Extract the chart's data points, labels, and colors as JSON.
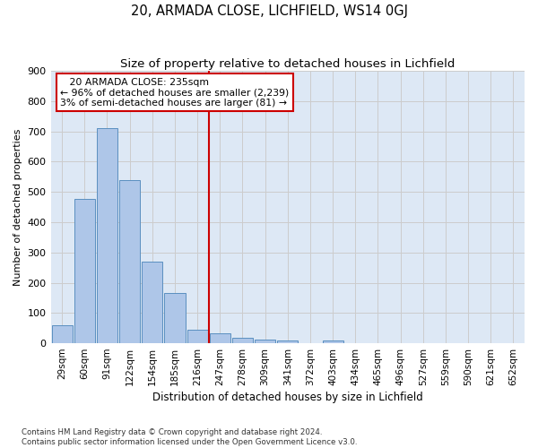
{
  "title": "20, ARMADA CLOSE, LICHFIELD, WS14 0GJ",
  "subtitle": "Size of property relative to detached houses in Lichfield",
  "xlabel": "Distribution of detached houses by size in Lichfield",
  "ylabel": "Number of detached properties",
  "footer_line1": "Contains HM Land Registry data © Crown copyright and database right 2024.",
  "footer_line2": "Contains public sector information licensed under the Open Government Licence v3.0.",
  "categories": [
    "29sqm",
    "60sqm",
    "91sqm",
    "122sqm",
    "154sqm",
    "185sqm",
    "216sqm",
    "247sqm",
    "278sqm",
    "309sqm",
    "341sqm",
    "372sqm",
    "403sqm",
    "434sqm",
    "465sqm",
    "496sqm",
    "527sqm",
    "559sqm",
    "590sqm",
    "621sqm",
    "652sqm"
  ],
  "values": [
    60,
    478,
    710,
    538,
    270,
    165,
    45,
    32,
    18,
    13,
    8,
    0,
    8,
    0,
    0,
    0,
    0,
    0,
    0,
    0,
    0
  ],
  "bar_color": "#aec6e8",
  "bar_edge_color": "#5a8fc0",
  "grid_color": "#cccccc",
  "bg_color": "#dde8f5",
  "vline_x_index": 7,
  "vline_color": "#cc0000",
  "annotation_line1": "   20 ARMADA CLOSE: 235sqm",
  "annotation_line2": "← 96% of detached houses are smaller (2,239)",
  "annotation_line3": "3% of semi-detached houses are larger (81) →",
  "ylim": [
    0,
    900
  ],
  "yticks": [
    0,
    100,
    200,
    300,
    400,
    500,
    600,
    700,
    800,
    900
  ]
}
